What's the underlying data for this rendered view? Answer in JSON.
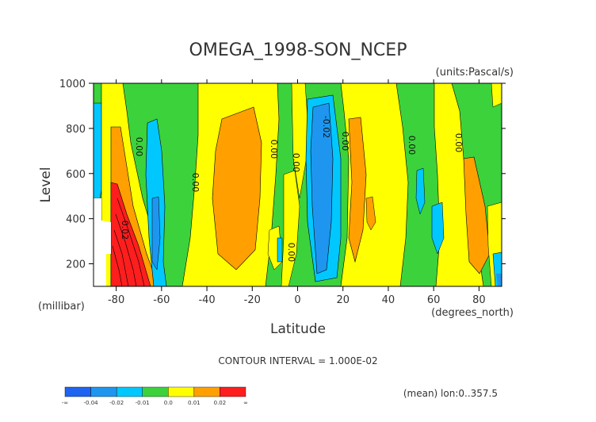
{
  "chart_data": {
    "type": "heatmap",
    "title": "OMEGA_1998-SON_NCEP",
    "units": "(units:Pascal/s)",
    "xlabel": "Latitude",
    "xunits": "(degrees_north)",
    "ylabel": "Level",
    "yunits": "(millibar)",
    "x_ticks": [
      "-80",
      "-60",
      "-40",
      "-20",
      "0",
      "20",
      "40",
      "60",
      "80"
    ],
    "x_tick_values": [
      -80,
      -60,
      -40,
      -20,
      0,
      20,
      40,
      60,
      80
    ],
    "y_ticks": [
      "200",
      "400",
      "600",
      "800",
      "1000"
    ],
    "y_tick_values": [
      200,
      400,
      600,
      800,
      1000
    ],
    "xlim": [
      -90,
      90
    ],
    "ylim": [
      1000,
      100
    ],
    "contour_interval": "CONTOUR INTERVAL = 1.000E-02",
    "contour_labels": [
      "0.00",
      "0.00",
      "0.00",
      "0.00",
      "-0.02",
      "0.00",
      "0.00",
      "0.00",
      "0.00",
      "0.02"
    ],
    "colorbar": {
      "labels": [
        "-∞",
        "-0.04",
        "-0.02",
        "-0.01",
        "0.0",
        "0.01",
        "0.02",
        "∞"
      ],
      "colors": [
        "#1e64f0",
        "#1e96f0",
        "#00c8ff",
        "#3cd23c",
        "#ffff00",
        "#ffa000",
        "#ff1e1e"
      ]
    },
    "footnote": "(mean) lon:0..357.5"
  }
}
